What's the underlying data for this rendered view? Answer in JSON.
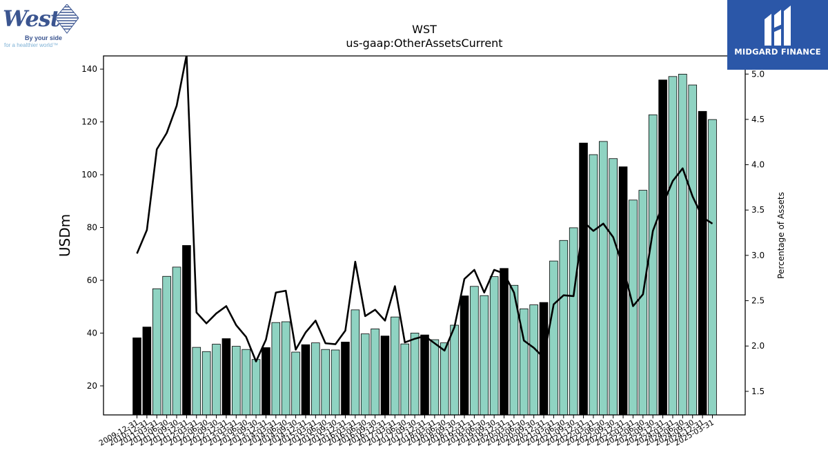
{
  "logos": {
    "left": {
      "word": "West",
      "tagline1": "By your side",
      "tagline2": "for a healthier world™"
    },
    "right": {
      "text": "MIDGARD FINANCE"
    }
  },
  "chart_data": {
    "type": "bar",
    "title": "WST",
    "subtitle": "us-gaap:OtherAssetsCurrent",
    "ylabel": "USDm",
    "y2label": "Percentage of Assets",
    "ylim": [
      9,
      145
    ],
    "y2lim": [
      1.24,
      5.2
    ],
    "yticks": [
      20,
      40,
      60,
      80,
      100,
      120,
      140
    ],
    "y2ticks": [
      1.5,
      2.0,
      2.5,
      3.0,
      3.5,
      4.0,
      4.5,
      5.0
    ],
    "bar_colors": {
      "fy": "#000000",
      "quarter": "#8fd3c2"
    },
    "line_color": "#000000",
    "categories": [
      "2009-12-31",
      "2010-12-31",
      "2011-03-31",
      "2011-06-30",
      "2011-09-30",
      "2011-12-31",
      "2012-03-31",
      "2012-06-30",
      "2012-09-30",
      "2012-12-31",
      "2013-03-31",
      "2013-06-30",
      "2013-09-30",
      "2013-12-31",
      "2014-03-31",
      "2014-06-30",
      "2014-09-30",
      "2014-12-31",
      "2015-03-31",
      "2015-06-30",
      "2015-09-30",
      "2015-12-31",
      "2016-03-31",
      "2016-06-30",
      "2016-09-30",
      "2016-12-31",
      "2017-03-31",
      "2017-06-30",
      "2017-09-30",
      "2017-12-31",
      "2018-03-31",
      "2018-06-30",
      "2018-09-30",
      "2018-12-31",
      "2019-03-31",
      "2019-06-30",
      "2019-09-30",
      "2019-12-31",
      "2020-03-31",
      "2020-06-30",
      "2020-09-30",
      "2020-12-31",
      "2021-03-31",
      "2021-06-30",
      "2021-09-30",
      "2021-12-31",
      "2022-03-31",
      "2022-06-30",
      "2022-09-30",
      "2022-12-31",
      "2023-03-31",
      "2023-06-30",
      "2023-09-30",
      "2023-12-31",
      "2024-03-31",
      "2024-06-30",
      "2024-09-30",
      "2024-12-31",
      "2025-03-31"
    ],
    "fiscal_year_end": [
      true,
      true,
      false,
      false,
      false,
      true,
      false,
      false,
      false,
      true,
      false,
      false,
      false,
      true,
      false,
      false,
      false,
      true,
      false,
      false,
      false,
      true,
      false,
      false,
      false,
      true,
      false,
      false,
      false,
      true,
      false,
      false,
      false,
      true,
      false,
      false,
      false,
      true,
      false,
      false,
      false,
      true,
      false,
      false,
      false,
      true,
      false,
      false,
      false,
      true,
      false,
      false,
      false,
      true,
      false,
      false,
      false,
      true,
      false
    ],
    "series": [
      {
        "name": "OtherAssetsCurrent (USDm)",
        "axis": "left",
        "values": [
          38.2,
          42.3,
          56.8,
          61.5,
          65.0,
          73.2,
          34.6,
          33.0,
          35.8,
          37.9,
          35.0,
          33.8,
          30.0,
          34.5,
          44.0,
          44.3,
          32.8,
          35.6,
          36.3,
          33.8,
          33.6,
          36.6,
          48.8,
          39.7,
          41.6,
          38.9,
          46.1,
          35.9,
          40.0,
          39.3,
          37.5,
          36.3,
          43.0,
          54.1,
          57.7,
          54.2,
          61.4,
          64.5,
          58.1,
          49.2,
          50.7,
          51.6,
          67.3,
          75.1,
          79.9,
          112.0,
          107.6,
          112.6,
          106.1,
          103.0,
          90.4,
          94.1,
          122.7,
          135.9,
          137.2,
          138.1,
          134.0,
          124.0,
          120.9
        ]
      },
      {
        "name": "Percentage of Assets",
        "axis": "right",
        "values": [
          3.02,
          3.28,
          4.17,
          4.35,
          4.65,
          5.21,
          2.37,
          2.25,
          2.36,
          2.44,
          2.23,
          2.1,
          1.83,
          2.07,
          2.59,
          2.61,
          1.96,
          2.15,
          2.28,
          2.03,
          2.02,
          2.17,
          2.93,
          2.33,
          2.4,
          2.28,
          2.66,
          2.04,
          2.08,
          2.11,
          2.03,
          1.95,
          2.21,
          2.74,
          2.84,
          2.59,
          2.84,
          2.8,
          2.59,
          2.06,
          1.98,
          1.87,
          2.46,
          2.56,
          2.55,
          3.37,
          3.27,
          3.35,
          3.2,
          2.87,
          2.44,
          2.57,
          3.27,
          3.56,
          3.82,
          3.96,
          3.65,
          3.42,
          3.35
        ]
      }
    ]
  }
}
